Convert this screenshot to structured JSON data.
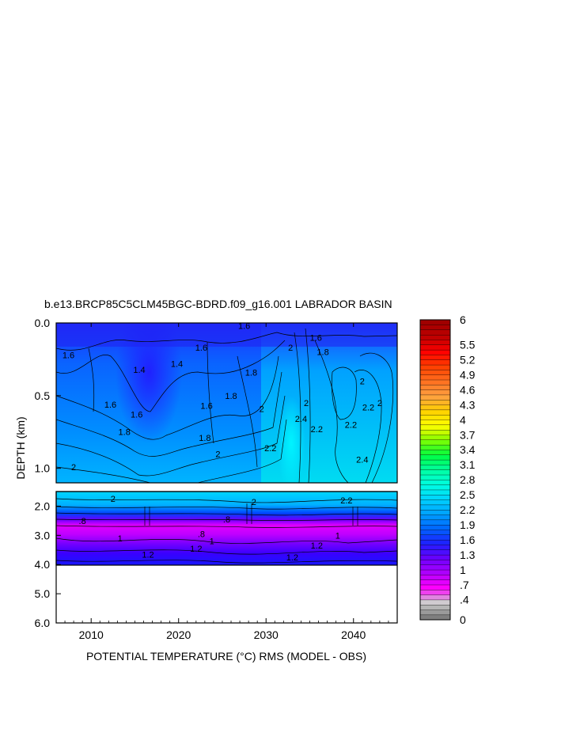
{
  "chart_data": {
    "type": "heatmap",
    "title": "b.e13.BRCP85C5CLM45BGC-BDRD.f09_g16.001 LABRADOR BASIN",
    "xlabel": "POTENTIAL TEMPERATURE (°C) RMS (MODEL - OBS)",
    "ylabel": "DEPTH (km)",
    "xlim": [
      2006,
      2045
    ],
    "x_ticks": [
      "2010",
      "2020",
      "2030",
      "2040"
    ],
    "upper_panel": {
      "ylim": [
        0.0,
        1.1
      ],
      "y_ticks": [
        "0.0",
        "0.5",
        "1.0"
      ]
    },
    "lower_panel": {
      "ylim": [
        1.5,
        6.0
      ],
      "y_ticks": [
        "2.0",
        "3.0",
        "4.0",
        "5.0",
        "6.0"
      ]
    },
    "colorbar": {
      "labels": [
        "0",
        ".4",
        ".7",
        "1",
        "1.3",
        "1.6",
        "1.9",
        "2.2",
        "2.5",
        "2.8",
        "3.1",
        "3.4",
        "3.7",
        "4",
        "4.3",
        "4.6",
        "4.9",
        "5.2",
        "5.5",
        "6"
      ],
      "min": 0,
      "max": 6,
      "step": 0.1,
      "colors": [
        "#7f7f7f",
        "#cfcfcf",
        "#ff00ff",
        "#b000ff",
        "#6a00ff",
        "#1f1fff",
        "#0064ff",
        "#00a0ff",
        "#00d2ff",
        "#00ffe0",
        "#00ffa0",
        "#00ff40",
        "#80ff00",
        "#ffff00",
        "#ffd000",
        "#ffa040",
        "#ff7020",
        "#ff4000",
        "#ff0000",
        "#c00000",
        "#a00000"
      ]
    },
    "contour_labels": {
      "upper": [
        {
          "text": "1.6",
          "x": 2007.4,
          "y": 0.22
        },
        {
          "text": "1.4",
          "x": 2015.5,
          "y": 0.32
        },
        {
          "text": "1.4",
          "x": 2019.8,
          "y": 0.28
        },
        {
          "text": "1.6",
          "x": 2022.6,
          "y": 0.17
        },
        {
          "text": "1.6",
          "x": 2027.5,
          "y": 0.02
        },
        {
          "text": "1.6",
          "x": 2012.2,
          "y": 0.56
        },
        {
          "text": "1.6",
          "x": 2015.2,
          "y": 0.63
        },
        {
          "text": "1.6",
          "x": 2023.2,
          "y": 0.57
        },
        {
          "text": "1.8",
          "x": 2013.8,
          "y": 0.75
        },
        {
          "text": "1.8",
          "x": 2023.0,
          "y": 0.79
        },
        {
          "text": "1.8",
          "x": 2026.0,
          "y": 0.5
        },
        {
          "text": "1.8",
          "x": 2028.3,
          "y": 0.34
        },
        {
          "text": "2",
          "x": 2008.0,
          "y": 0.99
        },
        {
          "text": "2",
          "x": 2024.5,
          "y": 0.9
        },
        {
          "text": "2",
          "x": 2029.5,
          "y": 0.59
        },
        {
          "text": "2",
          "x": 2034.6,
          "y": 0.55
        },
        {
          "text": "2",
          "x": 2041.0,
          "y": 0.4
        },
        {
          "text": "2",
          "x": 2043.0,
          "y": 0.55
        },
        {
          "text": "2",
          "x": 2032.8,
          "y": 0.17
        },
        {
          "text": "1.8",
          "x": 2036.5,
          "y": 0.2
        },
        {
          "text": "1.6",
          "x": 2035.7,
          "y": 0.1
        },
        {
          "text": "2.2",
          "x": 2030.5,
          "y": 0.86
        },
        {
          "text": "2.2",
          "x": 2035.8,
          "y": 0.73
        },
        {
          "text": "2.2",
          "x": 2041.7,
          "y": 0.58
        },
        {
          "text": "2.2",
          "x": 2039.7,
          "y": 0.7
        },
        {
          "text": "2.4",
          "x": 2034.0,
          "y": 0.66
        },
        {
          "text": "2.4",
          "x": 2041.0,
          "y": 0.94
        }
      ],
      "lower": [
        {
          "text": "2",
          "x": 2012.5,
          "y": 1.75
        },
        {
          "text": "2",
          "x": 2028.6,
          "y": 1.85
        },
        {
          "text": "2.2",
          "x": 2039.2,
          "y": 1.8
        },
        {
          "text": ".8",
          "x": 2009.0,
          "y": 2.5
        },
        {
          "text": ".8",
          "x": 2025.5,
          "y": 2.45
        },
        {
          "text": ".8",
          "x": 2022.6,
          "y": 2.95
        },
        {
          "text": "1",
          "x": 2013.3,
          "y": 3.1
        },
        {
          "text": "1",
          "x": 2023.8,
          "y": 3.2
        },
        {
          "text": "1",
          "x": 2038.2,
          "y": 3.0
        },
        {
          "text": "1.2",
          "x": 2016.5,
          "y": 3.65
        },
        {
          "text": "1.2",
          "x": 2022.0,
          "y": 3.45
        },
        {
          "text": "1.2",
          "x": 2033.0,
          "y": 3.75
        },
        {
          "text": "1.2",
          "x": 2035.8,
          "y": 3.35
        }
      ]
    }
  }
}
